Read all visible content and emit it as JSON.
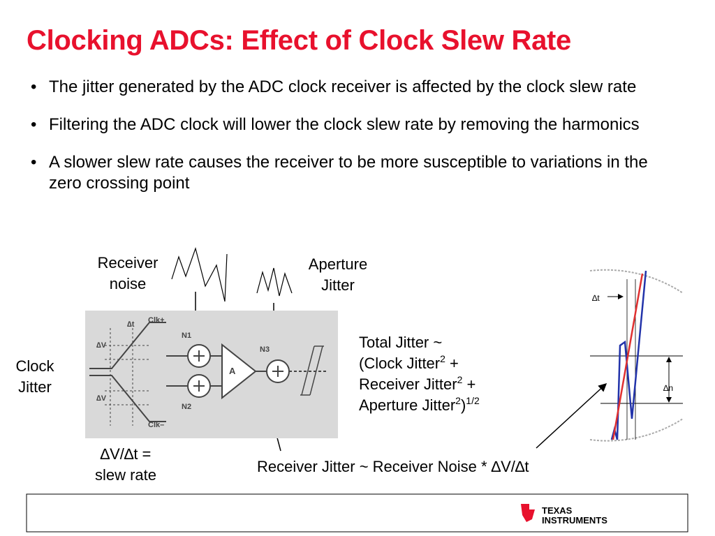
{
  "title": "Clocking ADCs: Effect of Clock Slew Rate",
  "bullets": [
    "The jitter generated by the ADC clock receiver is affected by the clock slew rate",
    "Filtering the ADC clock will lower the clock slew rate by removing the harmonics",
    "A slower slew rate causes the receiver to be more susceptible to variations in the zero crossing point"
  ],
  "labels": {
    "receiver_noise": "Receiver noise",
    "aperture_jitter": "Aperture Jitter",
    "clock_jitter": "Clock Jitter",
    "slew_rate": "∆V/∆t = slew rate",
    "receiver_jitter": "Receiver Jitter ~ Receiver Noise * ∆V/∆t"
  },
  "total_jitter": [
    [
      {
        "text": "Total Jitter ~"
      }
    ],
    [
      {
        "text": "(Clock Jitter"
      },
      {
        "text": "2",
        "sup": true
      },
      {
        "text": " +"
      }
    ],
    [
      {
        "text": "Receiver Jitter"
      },
      {
        "text": "2",
        "sup": true
      },
      {
        "text": " +"
      }
    ],
    [
      {
        "text": "Aperture Jitter"
      },
      {
        "text": "2",
        "sup": true
      },
      {
        "text": ")"
      },
      {
        "text": "1/2",
        "sup": true
      }
    ]
  ],
  "diagram": {
    "clk_plus": "Clk+",
    "clk_minus": "Clk–",
    "dt": "∆t",
    "dv1": "∆V",
    "dv2": "∆V",
    "n1": "N1",
    "n2": "N2",
    "n3": "N3",
    "amp": "A",
    "scope_dt": "∆t",
    "scope_dn": "∆n"
  },
  "logo": {
    "line1": "Texas",
    "line2": "Instruments"
  }
}
